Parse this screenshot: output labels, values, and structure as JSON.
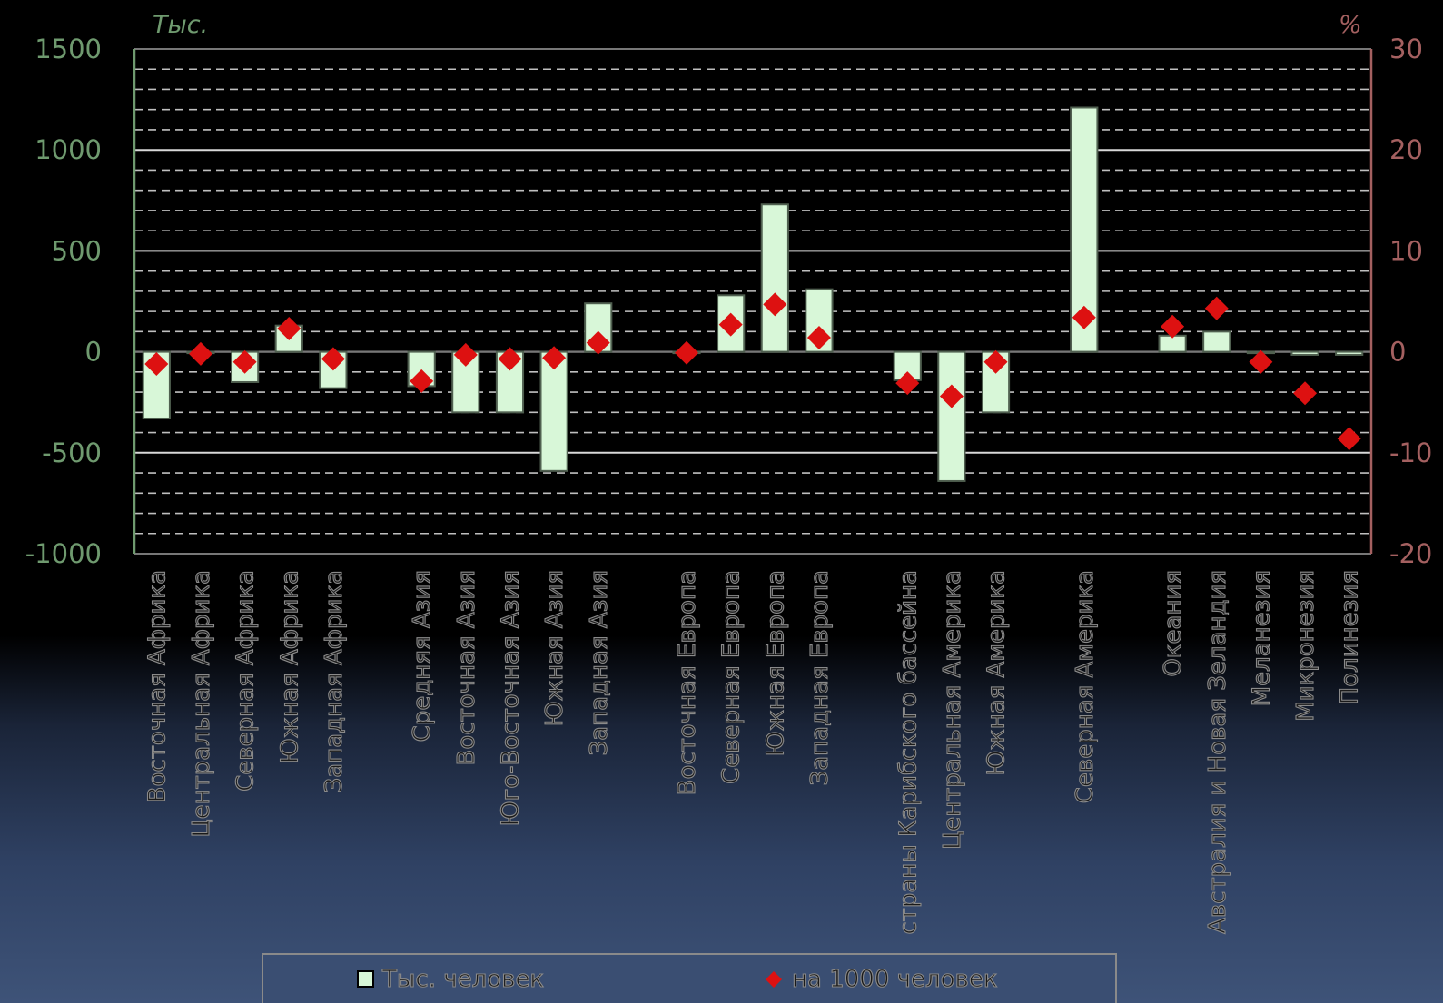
{
  "chart_data": {
    "type": "bar",
    "units": {
      "left": "Тыс.",
      "right": "%"
    },
    "categories": [
      "Восточная Африка",
      "Центральная Африка",
      "Северная Африка",
      "Южная Африка",
      "Западная Африка",
      "",
      "Средняя Азия",
      "Восточная Азия",
      "Юго-Восточная Азия",
      "Южная Азия",
      "Западная Азия",
      "",
      "Восточная Европа",
      "Северная Европа",
      "Южная Европа",
      "Западная Европа",
      "",
      "страны Карибского бассейна",
      "Центральная Америка",
      "Южная Америка",
      "",
      "Северная Америка",
      "",
      "Океания",
      "Австралия и Новая Зеландия",
      "Меланезия",
      "Микронезия",
      "Полинезия"
    ],
    "series": [
      {
        "name": "Тыс. человек",
        "axis": "left",
        "values": [
          -330,
          0,
          -150,
          130,
          -180,
          null,
          -170,
          -300,
          -300,
          -590,
          240,
          null,
          0,
          280,
          730,
          310,
          null,
          -140,
          -640,
          -300,
          null,
          1210,
          null,
          80,
          100,
          0,
          -15,
          -15
        ]
      },
      {
        "name": "на 1000 человек",
        "axis": "right",
        "values": [
          -1.2,
          -0.2,
          -1.0,
          2.3,
          -0.7,
          null,
          -2.9,
          -0.3,
          -0.7,
          -0.6,
          0.9,
          null,
          -0.1,
          2.7,
          4.7,
          1.4,
          null,
          -3.1,
          -4.4,
          -1.0,
          null,
          3.4,
          null,
          2.5,
          4.3,
          -1.0,
          -4.1,
          -8.6
        ]
      }
    ],
    "y_left": {
      "min": -1000,
      "max": 1500,
      "ticks": [
        1500,
        1000,
        500,
        0,
        -500,
        -1000
      ]
    },
    "y_right": {
      "min": -20,
      "max": 30,
      "ticks": [
        30,
        20,
        10,
        0,
        -10,
        -20
      ]
    },
    "grid": true,
    "legend": {
      "position": "bottom-center",
      "items": [
        "Тыс. человек",
        "на 1000 человек"
      ]
    },
    "colors": {
      "bar_fill": "#d8f7d8",
      "bar_stroke": "#506050",
      "marker": "#dd1111",
      "left_axis": "#6f9a6f",
      "right_axis": "#a46060",
      "grid": "#ffffff"
    }
  }
}
